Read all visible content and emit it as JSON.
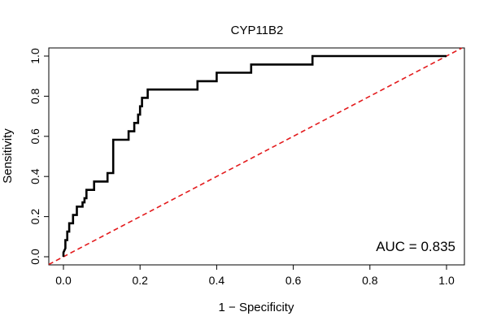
{
  "chart_data": {
    "type": "line",
    "title": "CYP11B2",
    "xlabel": "1 − Specificity",
    "ylabel": "Sensitivity",
    "xlim": [
      0,
      1
    ],
    "ylim": [
      0,
      1
    ],
    "x_ticks": [
      "0.0",
      "0.2",
      "0.4",
      "0.6",
      "0.8",
      "1.0"
    ],
    "y_ticks": [
      "0.0",
      "0.2",
      "0.4",
      "0.6",
      "0.8",
      "1.0"
    ],
    "grid": false,
    "annotation": "AUC = 0.835",
    "series": [
      {
        "role": "roc-curve",
        "color": "#000000",
        "points": [
          [
            0.0,
            0.0
          ],
          [
            0.0,
            0.021
          ],
          [
            0.005,
            0.042
          ],
          [
            0.005,
            0.083
          ],
          [
            0.01,
            0.083
          ],
          [
            0.01,
            0.125
          ],
          [
            0.015,
            0.125
          ],
          [
            0.015,
            0.167
          ],
          [
            0.025,
            0.167
          ],
          [
            0.025,
            0.208
          ],
          [
            0.035,
            0.208
          ],
          [
            0.035,
            0.25
          ],
          [
            0.05,
            0.25
          ],
          [
            0.05,
            0.271
          ],
          [
            0.055,
            0.271
          ],
          [
            0.055,
            0.292
          ],
          [
            0.06,
            0.292
          ],
          [
            0.06,
            0.333
          ],
          [
            0.08,
            0.333
          ],
          [
            0.08,
            0.375
          ],
          [
            0.115,
            0.375
          ],
          [
            0.115,
            0.417
          ],
          [
            0.13,
            0.417
          ],
          [
            0.13,
            0.583
          ],
          [
            0.17,
            0.583
          ],
          [
            0.17,
            0.625
          ],
          [
            0.185,
            0.625
          ],
          [
            0.185,
            0.667
          ],
          [
            0.195,
            0.667
          ],
          [
            0.195,
            0.708
          ],
          [
            0.2,
            0.708
          ],
          [
            0.2,
            0.75
          ],
          [
            0.205,
            0.75
          ],
          [
            0.205,
            0.792
          ],
          [
            0.22,
            0.792
          ],
          [
            0.22,
            0.833
          ],
          [
            0.35,
            0.833
          ],
          [
            0.35,
            0.875
          ],
          [
            0.4,
            0.875
          ],
          [
            0.4,
            0.917
          ],
          [
            0.49,
            0.917
          ],
          [
            0.49,
            0.958
          ],
          [
            0.65,
            0.958
          ],
          [
            0.65,
            1.0
          ],
          [
            1.0,
            1.0
          ]
        ]
      },
      {
        "role": "reference-diagonal",
        "color": "#e31a1c",
        "points": [
          [
            0,
            0
          ],
          [
            1,
            1
          ]
        ]
      }
    ]
  }
}
